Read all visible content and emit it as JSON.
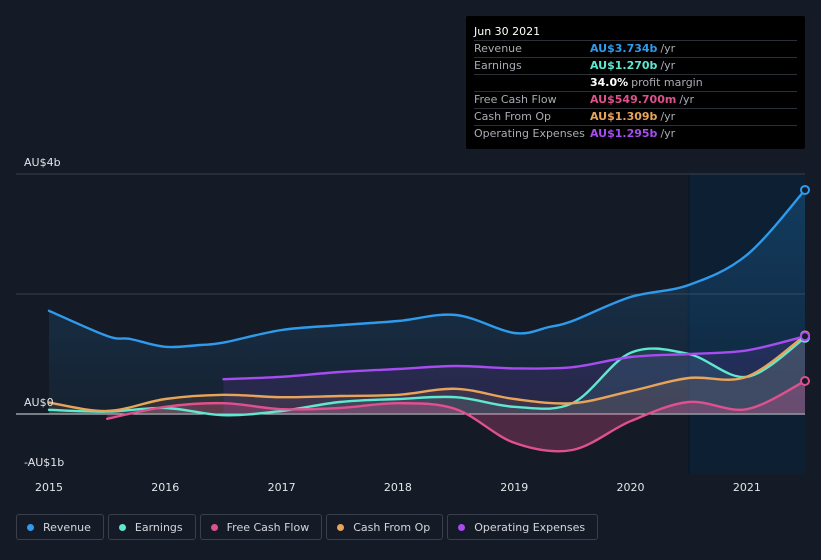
{
  "tooltip": {
    "date": "Jun 30 2021",
    "rows": [
      {
        "label": "Revenue",
        "value": "AU$3.734b",
        "unit": "/yr",
        "color": "#2e9bec"
      },
      {
        "label": "Earnings",
        "value": "AU$1.270b",
        "unit": "/yr",
        "color": "#5ee8d0"
      },
      {
        "label": "",
        "value": "34.0%",
        "unit": "profit margin",
        "color": "#ffffff"
      },
      {
        "label": "Free Cash Flow",
        "value": "AU$549.700m",
        "unit": "/yr",
        "color": "#e0508f"
      },
      {
        "label": "Cash From Op",
        "value": "AU$1.309b",
        "unit": "/yr",
        "color": "#e8a55a"
      },
      {
        "label": "Operating Expenses",
        "value": "AU$1.295b",
        "unit": "/yr",
        "color": "#a64cf0"
      }
    ]
  },
  "legend": [
    {
      "label": "Revenue",
      "color": "#2e9bec"
    },
    {
      "label": "Earnings",
      "color": "#5ee8d0"
    },
    {
      "label": "Free Cash Flow",
      "color": "#e0508f"
    },
    {
      "label": "Cash From Op",
      "color": "#e8a55a"
    },
    {
      "label": "Operating Expenses",
      "color": "#a64cf0"
    }
  ],
  "chart_data": {
    "type": "line",
    "title": "",
    "xlabel": "",
    "ylabel": "",
    "y_tick_labels": [
      {
        "value": 4,
        "label": "AU$4b"
      },
      {
        "value": 0,
        "label": "AU$0"
      },
      {
        "value": -1,
        "label": "-AU$1b"
      }
    ],
    "x_tick_labels": [
      "2015",
      "2016",
      "2017",
      "2018",
      "2019",
      "2020",
      "2021"
    ],
    "xlim": [
      2014.72,
      2021.5
    ],
    "ylim": [
      -1,
      4
    ],
    "grid": true,
    "highlight_period": [
      2020.5,
      2021.5
    ],
    "series": [
      {
        "name": "Revenue",
        "color": "#2e9bec",
        "points": [
          [
            2015.0,
            1.72
          ],
          [
            2015.5,
            1.3
          ],
          [
            2015.7,
            1.25
          ],
          [
            2016.0,
            1.12
          ],
          [
            2016.3,
            1.15
          ],
          [
            2016.5,
            1.19
          ],
          [
            2017.0,
            1.4
          ],
          [
            2017.5,
            1.48
          ],
          [
            2018.0,
            1.55
          ],
          [
            2018.5,
            1.65
          ],
          [
            2019.0,
            1.35
          ],
          [
            2019.3,
            1.45
          ],
          [
            2019.5,
            1.55
          ],
          [
            2020.0,
            1.95
          ],
          [
            2020.5,
            2.15
          ],
          [
            2021.0,
            2.65
          ],
          [
            2021.5,
            3.734
          ]
        ]
      },
      {
        "name": "Earnings",
        "color": "#5ee8d0",
        "points": [
          [
            2015.0,
            0.07
          ],
          [
            2015.5,
            0.04
          ],
          [
            2016.0,
            0.1
          ],
          [
            2016.5,
            -0.02
          ],
          [
            2017.0,
            0.05
          ],
          [
            2017.5,
            0.2
          ],
          [
            2018.0,
            0.25
          ],
          [
            2018.5,
            0.28
          ],
          [
            2019.0,
            0.12
          ],
          [
            2019.5,
            0.18
          ],
          [
            2020.0,
            1.02
          ],
          [
            2020.5,
            1.0
          ],
          [
            2021.0,
            0.62
          ],
          [
            2021.5,
            1.27
          ]
        ]
      },
      {
        "name": "Free Cash Flow",
        "color": "#e0508f",
        "points": [
          [
            2015.5,
            -0.08
          ],
          [
            2016.0,
            0.12
          ],
          [
            2016.5,
            0.18
          ],
          [
            2017.0,
            0.08
          ],
          [
            2017.5,
            0.1
          ],
          [
            2018.0,
            0.18
          ],
          [
            2018.5,
            0.08
          ],
          [
            2019.0,
            -0.48
          ],
          [
            2019.5,
            -0.6
          ],
          [
            2020.0,
            -0.12
          ],
          [
            2020.5,
            0.2
          ],
          [
            2021.0,
            0.08
          ],
          [
            2021.5,
            0.5497
          ]
        ]
      },
      {
        "name": "Cash From Op",
        "color": "#e8a55a",
        "points": [
          [
            2015.0,
            0.19
          ],
          [
            2015.5,
            0.05
          ],
          [
            2016.0,
            0.25
          ],
          [
            2016.5,
            0.32
          ],
          [
            2017.0,
            0.28
          ],
          [
            2017.5,
            0.3
          ],
          [
            2018.0,
            0.32
          ],
          [
            2018.5,
            0.42
          ],
          [
            2019.0,
            0.25
          ],
          [
            2019.5,
            0.18
          ],
          [
            2020.0,
            0.38
          ],
          [
            2020.5,
            0.6
          ],
          [
            2021.0,
            0.62
          ],
          [
            2021.5,
            1.309
          ]
        ]
      },
      {
        "name": "Operating Expenses",
        "color": "#a64cf0",
        "points": [
          [
            2016.5,
            0.58
          ],
          [
            2017.0,
            0.62
          ],
          [
            2017.5,
            0.7
          ],
          [
            2018.0,
            0.75
          ],
          [
            2018.5,
            0.8
          ],
          [
            2019.0,
            0.76
          ],
          [
            2019.5,
            0.78
          ],
          [
            2020.0,
            0.95
          ],
          [
            2020.5,
            1.0
          ],
          [
            2021.0,
            1.06
          ],
          [
            2021.5,
            1.295
          ]
        ]
      }
    ]
  }
}
